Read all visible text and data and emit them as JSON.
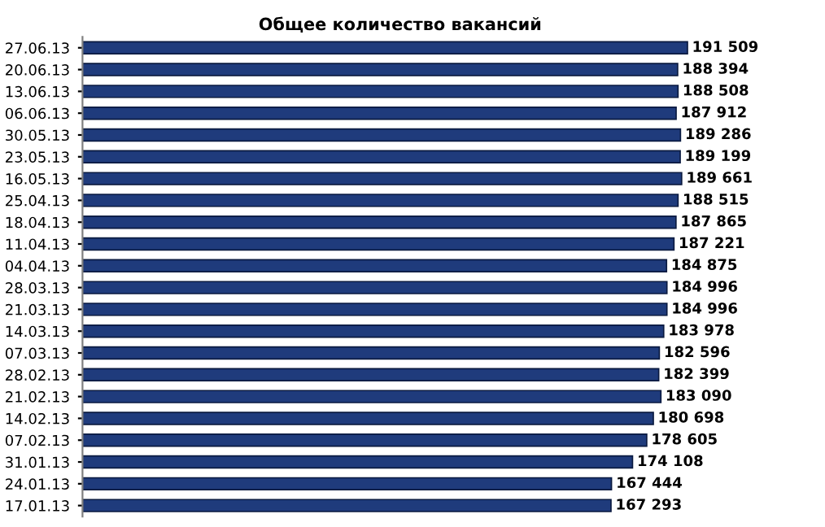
{
  "chart_data": {
    "type": "bar",
    "orientation": "horizontal",
    "title": "Общее количество вакансий",
    "categories": [
      "27.06.13",
      "20.06.13",
      "13.06.13",
      "06.06.13",
      "30.05.13",
      "23.05.13",
      "16.05.13",
      "25.04.13",
      "18.04.13",
      "11.04.13",
      "04.04.13",
      "28.03.13",
      "21.03.13",
      "14.03.13",
      "07.03.13",
      "28.02.13",
      "21.02.13",
      "14.02.13",
      "07.02.13",
      "31.01.13",
      "24.01.13",
      "17.01.13"
    ],
    "values": [
      191509,
      188394,
      188508,
      187912,
      189286,
      189199,
      189661,
      188515,
      187865,
      187221,
      184875,
      184996,
      184996,
      183978,
      182596,
      182399,
      183090,
      180698,
      178605,
      174108,
      167444,
      167293
    ],
    "value_labels": [
      "191 509",
      "188 394",
      "188 508",
      "187 912",
      "189 286",
      "189 199",
      "189 661",
      "188 515",
      "187 865",
      "187 221",
      "184 875",
      "184 996",
      "184 996",
      "183 978",
      "182 596",
      "182 399",
      "183 090",
      "180 698",
      "178 605",
      "174 108",
      "167 444",
      "167 293"
    ],
    "color": "#1f3b7c",
    "tick_labels": "y",
    "grid": false,
    "legend": false
  }
}
